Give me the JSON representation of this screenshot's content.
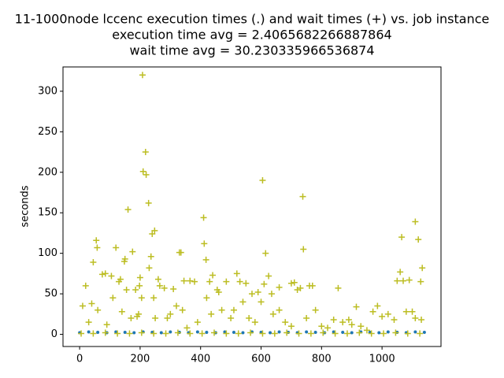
{
  "chart_data": {
    "type": "scatter",
    "title": [
      "11-1000node lccenc execution times (.) and wait times (+) vs. job instance",
      "execution time avg = 2.4065682266887864",
      "wait time avg = 30.230335966536874"
    ],
    "ylabel": "seconds",
    "xlim": [
      -55,
      1195
    ],
    "ylim": [
      -15,
      330
    ],
    "xticks": [
      0,
      200,
      400,
      600,
      800,
      1000
    ],
    "yticks": [
      0,
      50,
      100,
      150,
      200,
      250,
      300
    ],
    "grid": false,
    "series": [
      {
        "color": "#1f77b4",
        "marker": "dot",
        "x": [
          0,
          30,
          60,
          90,
          120,
          150,
          180,
          210,
          240,
          270,
          300,
          330,
          360,
          390,
          420,
          450,
          480,
          510,
          540,
          570,
          600,
          630,
          660,
          690,
          720,
          750,
          780,
          810,
          840,
          870,
          900,
          930,
          960,
          990,
          1020,
          1050,
          1080,
          1110,
          1140
        ],
        "values": [
          2,
          3,
          2.5,
          2,
          3,
          2.5,
          2,
          3,
          2.5,
          2,
          3,
          2.5,
          2,
          3,
          2.5,
          2,
          3,
          2.5,
          2,
          3,
          2.5,
          2,
          3,
          2.5,
          2,
          3,
          2.5,
          2,
          3,
          2.5,
          2,
          3,
          2.5,
          2,
          3,
          2.5,
          2,
          3,
          2.5
        ]
      },
      {
        "color": "#bcbd22",
        "marker": "plus",
        "x": [
          208,
          210,
          218,
          220,
          228,
          160,
          240,
          248,
          236,
          55,
          58,
          45,
          120,
          150,
          148,
          175,
          605,
          738,
          740,
          410,
          412,
          418,
          335,
          330,
          615,
          1110,
          1120,
          1065,
          1133,
          1128,
          20,
          75,
          85,
          105,
          130,
          135,
          155,
          185,
          198,
          200,
          230,
          260,
          265,
          280,
          310,
          345,
          365,
          380,
          430,
          440,
          455,
          460,
          485,
          520,
          530,
          550,
          570,
          590,
          610,
          625,
          635,
          660,
          700,
          710,
          720,
          730,
          760,
          770,
          855,
          915,
          985,
          1050,
          1060,
          1070,
          1090,
          1100,
          1080,
          10,
          30,
          40,
          60,
          90,
          110,
          140,
          170,
          190,
          195,
          205,
          245,
          250,
          290,
          300,
          320,
          340,
          355,
          390,
          420,
          435,
          470,
          500,
          510,
          540,
          560,
          580,
          600,
          640,
          660,
          680,
          700,
          750,
          780,
          800,
          820,
          840,
          870,
          890,
          900,
          930,
          950,
          970,
          1000,
          1020,
          1040,
          1110,
          1130,
          5,
          45,
          85,
          125,
          165,
          205,
          245,
          285,
          325,
          365,
          405,
          445,
          485,
          525,
          565,
          605,
          645,
          685,
          725,
          765,
          805,
          845,
          885,
          925,
          965,
          1005,
          1045,
          1085,
          1125
        ],
        "values": [
          320,
          201,
          225,
          197,
          162,
          154,
          124,
          128,
          96,
          116,
          107,
          89,
          107,
          93,
          90,
          102,
          190,
          170,
          105,
          144,
          112,
          92,
          101,
          101,
          100,
          139,
          117,
          120,
          82,
          65,
          60,
          74,
          75,
          72,
          65,
          68,
          55,
          55,
          60,
          70,
          82,
          68,
          60,
          57,
          56,
          66,
          66,
          65,
          65,
          73,
          55,
          52,
          65,
          75,
          65,
          63,
          50,
          52,
          62,
          72,
          50,
          58,
          63,
          64,
          55,
          57,
          60,
          60,
          57,
          34,
          35,
          66,
          77,
          66,
          67,
          28,
          28,
          35,
          15,
          38,
          30,
          12,
          45,
          28,
          20,
          22,
          25,
          45,
          45,
          20,
          20,
          25,
          35,
          30,
          8,
          15,
          45,
          25,
          30,
          20,
          30,
          40,
          20,
          15,
          40,
          25,
          30,
          15,
          10,
          20,
          30,
          10,
          8,
          18,
          15,
          18,
          12,
          10,
          5,
          28,
          22,
          25,
          18,
          20,
          18,
          1,
          1,
          2,
          1,
          1,
          2,
          1,
          1,
          2,
          1,
          1,
          2,
          1,
          1,
          2,
          1,
          1,
          2,
          1,
          1,
          2,
          1,
          1,
          2,
          1,
          1,
          2,
          1,
          1
        ]
      }
    ]
  }
}
